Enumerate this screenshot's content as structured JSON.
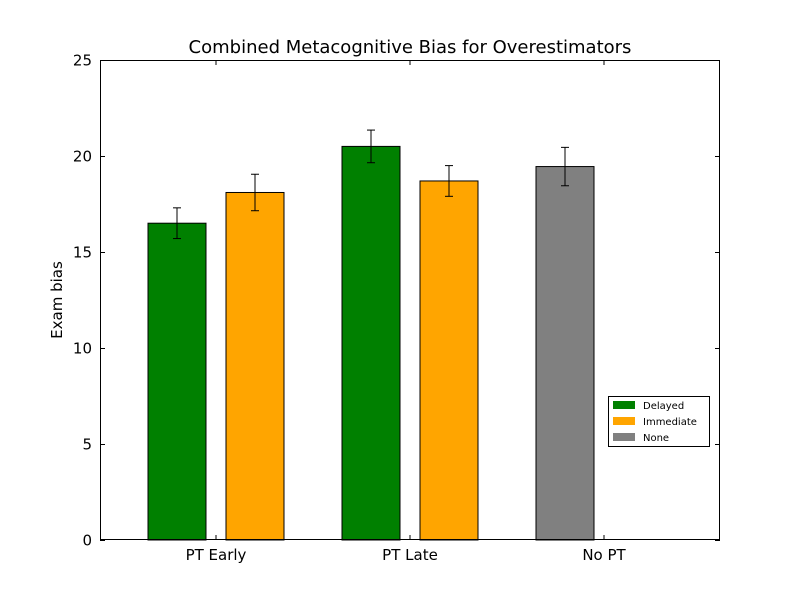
{
  "chart_data": {
    "type": "bar",
    "title": "Combined Metacognitive Bias for Overestimators",
    "xlabel": "",
    "ylabel": "Exam bias",
    "ylim": [
      0,
      25
    ],
    "yticks": [
      0,
      5,
      10,
      15,
      20,
      25
    ],
    "grid": false,
    "legend_position": "lower-right",
    "categories": [
      "PT Early",
      "PT Late",
      "No PT"
    ],
    "series": [
      {
        "name": "Delayed",
        "color": "#008000",
        "values": [
          16.5,
          20.5,
          null
        ],
        "errors": [
          0.8,
          0.85,
          null
        ]
      },
      {
        "name": "Immediate",
        "color": "#ffa500",
        "values": [
          18.1,
          18.7,
          null
        ],
        "errors": [
          0.95,
          0.8,
          null
        ]
      },
      {
        "name": "None",
        "color": "#808080",
        "values": [
          null,
          null,
          19.45
        ],
        "errors": [
          null,
          null,
          1.0
        ]
      }
    ]
  }
}
